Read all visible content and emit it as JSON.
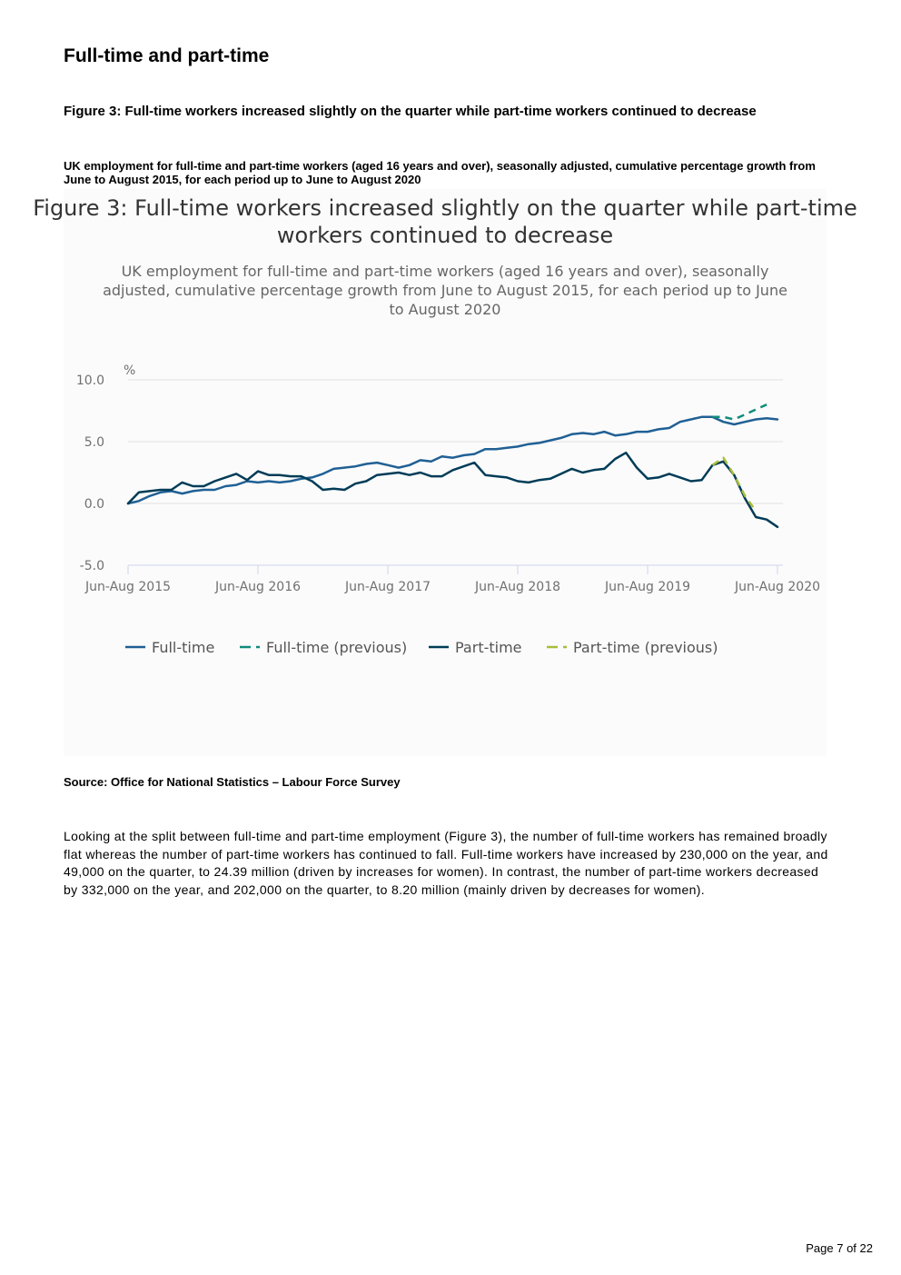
{
  "page": {
    "section_title": "Full-time and part-time",
    "figure_heading": "Figure 3: Full-time workers increased slightly on the quarter while part-time workers continued to decrease",
    "figure_subheading": "UK employment for full-time and part-time workers (aged 16 years and over), seasonally adjusted, cumulative percentage growth from June to August 2015, for each period up to June to August 2020",
    "source": "Source: Office for National Statistics – Labour Force Survey",
    "body_text": "Looking at the split between full-time and part-time employment (Figure 3), the number of full-time workers has remained broadly flat whereas the number of part-time workers has continued to fall. Full-time workers have increased by 230,000 on the year, and 49,000 on the quarter, to 24.39 million (driven by increases for women). In contrast, the number of part-time workers decreased by 332,000 on the year, and 202,000 on the quarter, to 8.20 million (mainly driven by decreases for women).",
    "page_number": "Page 7 of 22"
  },
  "chart_data": {
    "type": "line",
    "title": "Figure 3: Full-time workers increased slightly on the quarter while part-time workers continued to decrease",
    "subtitle": "UK employment for full-time and part-time workers (aged 16 years and over), seasonally adjusted, cumulative percentage growth from June to August 2015, for each period up to June to August 2020",
    "ylabel": "%",
    "ylim": [
      -5,
      10
    ],
    "yticks": [
      "10.0",
      "5.0",
      "0.0",
      "-5.0"
    ],
    "xticks": [
      "Jun-Aug 2015",
      "Jun-Aug 2016",
      "Jun-Aug 2017",
      "Jun-Aug 2018",
      "Jun-Aug 2019",
      "Jun-Aug 2020"
    ],
    "grid": true,
    "legend_position": "bottom",
    "series": [
      {
        "name": "Full-time",
        "color": "#206095",
        "style": "solid",
        "start_index": 0,
        "values": [
          0.0,
          0.2,
          0.6,
          0.9,
          1.0,
          0.8,
          1.0,
          1.1,
          1.1,
          1.4,
          1.5,
          1.8,
          1.7,
          1.8,
          1.7,
          1.8,
          2.0,
          2.1,
          2.4,
          2.8,
          2.9,
          3.0,
          3.2,
          3.3,
          3.1,
          2.9,
          3.1,
          3.5,
          3.4,
          3.8,
          3.7,
          3.9,
          4.0,
          4.4,
          4.4,
          4.5,
          4.6,
          4.8,
          4.9,
          5.1,
          5.3,
          5.6,
          5.7,
          5.6,
          5.8,
          5.5,
          5.6,
          5.8,
          5.8,
          6.0,
          6.1,
          6.6,
          6.8,
          7.0,
          7.0,
          6.6,
          6.4,
          6.6,
          6.8,
          6.9,
          6.8
        ]
      },
      {
        "name": "Full-time (previous)",
        "color": "#118c7b",
        "style": "dashed",
        "start_index": 54,
        "values": [
          7.0,
          7.0,
          6.8,
          7.2,
          7.6,
          8.0
        ]
      },
      {
        "name": "Part-time",
        "color": "#003c57",
        "style": "solid",
        "start_index": 0,
        "values": [
          0.0,
          0.9,
          1.0,
          1.1,
          1.1,
          1.7,
          1.4,
          1.4,
          1.8,
          2.1,
          2.4,
          1.9,
          2.6,
          2.3,
          2.3,
          2.2,
          2.2,
          1.8,
          1.1,
          1.2,
          1.1,
          1.6,
          1.8,
          2.3,
          2.4,
          2.5,
          2.3,
          2.5,
          2.2,
          2.2,
          2.7,
          3.0,
          3.3,
          2.3,
          2.2,
          2.1,
          1.8,
          1.7,
          1.9,
          2.0,
          2.4,
          2.8,
          2.5,
          2.7,
          2.8,
          3.6,
          4.1,
          2.9,
          2.0,
          2.1,
          2.4,
          2.1,
          1.8,
          1.9,
          3.1,
          3.4,
          2.3,
          0.4,
          -1.1,
          -1.3,
          -1.9
        ]
      },
      {
        "name": "Part-time (previous)",
        "color": "#a8bd3a",
        "style": "dashed",
        "start_index": 54,
        "values": [
          3.1,
          3.7,
          2.3,
          0.6,
          -0.6
        ]
      }
    ]
  }
}
